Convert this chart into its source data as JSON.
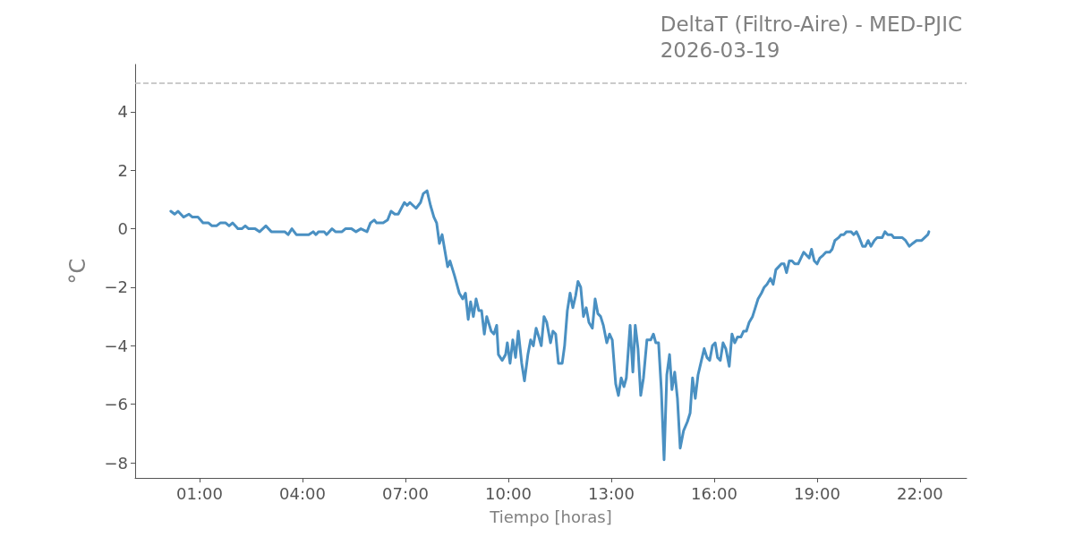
{
  "chart_data": {
    "type": "line",
    "title": "DeltaT (Filtro-Aire) - MED-PJIC",
    "subtitle": "2026-03-19",
    "xlabel": "Tiempo [horas]",
    "ylabel": "°C",
    "x": [
      0.16,
      0.27,
      0.37,
      0.53,
      0.69,
      0.79,
      0.95,
      1.1,
      1.26,
      1.36,
      1.49,
      1.6,
      1.76,
      1.86,
      1.96,
      2.12,
      2.23,
      2.33,
      2.43,
      2.62,
      2.75,
      2.93,
      3.09,
      3.27,
      3.48,
      3.58,
      3.69,
      3.82,
      4.18,
      4.31,
      4.39,
      4.47,
      4.63,
      4.7,
      4.86,
      4.96,
      5.15,
      5.25,
      5.43,
      5.56,
      5.7,
      5.88,
      5.98,
      6.09,
      6.16,
      6.35,
      6.48,
      6.58,
      6.69,
      6.79,
      6.97,
      7.05,
      7.13,
      7.31,
      7.44,
      7.52,
      7.63,
      7.73,
      7.83,
      7.91,
      7.99,
      8.07,
      8.23,
      8.3,
      8.43,
      8.57,
      8.67,
      8.75,
      8.83,
      8.9,
      8.98,
      9.06,
      9.14,
      9.22,
      9.3,
      9.37,
      9.5,
      9.58,
      9.66,
      9.71,
      9.82,
      9.92,
      9.97,
      10.05,
      10.13,
      10.21,
      10.29,
      10.39,
      10.47,
      10.57,
      10.65,
      10.73,
      10.81,
      10.89,
      10.96,
      11.04,
      11.12,
      11.23,
      11.3,
      11.38,
      11.46,
      11.57,
      11.64,
      11.72,
      11.8,
      11.88,
      11.96,
      12.03,
      12.11,
      12.19,
      12.27,
      12.35,
      12.45,
      12.53,
      12.61,
      12.69,
      12.77,
      12.87,
      12.95,
      13.03,
      13.13,
      13.21,
      13.29,
      13.37,
      13.44,
      13.55,
      13.63,
      13.7,
      13.78,
      13.86,
      13.94,
      14.04,
      14.15,
      14.23,
      14.3,
      14.38,
      14.46,
      14.54,
      14.62,
      14.7,
      14.77,
      14.85,
      14.93,
      15.01,
      15.11,
      15.22,
      15.3,
      15.37,
      15.45,
      15.53,
      15.63,
      15.71,
      15.79,
      15.87,
      15.95,
      16.03,
      16.1,
      16.18,
      16.26,
      16.34,
      16.44,
      16.52,
      16.6,
      16.68,
      16.78,
      16.86,
      16.94,
      17.02,
      17.12,
      17.2,
      17.28,
      17.38,
      17.46,
      17.54,
      17.64,
      17.72,
      17.8,
      17.88,
      17.96,
      18.04,
      18.11,
      18.19,
      18.27,
      18.35,
      18.45,
      18.53,
      18.61,
      18.69,
      18.77,
      18.84,
      18.92,
      19.0,
      19.08,
      19.18,
      19.26,
      19.37,
      19.44,
      19.52,
      19.63,
      19.7,
      19.78,
      19.86,
      19.99,
      20.07,
      20.15,
      20.23,
      20.33,
      20.41,
      20.49,
      20.57,
      20.67,
      20.75,
      20.9,
      20.98,
      21.06,
      21.17,
      21.24,
      21.48,
      21.58,
      21.69,
      21.79,
      21.9,
      22.05,
      22.23,
      22.26
    ],
    "series": [
      {
        "color": "#4a90c2",
        "values": [
          0.6,
          0.5,
          0.6,
          0.4,
          0.5,
          0.4,
          0.4,
          0.2,
          0.2,
          0.1,
          0.1,
          0.2,
          0.2,
          0.1,
          0.2,
          0.0,
          0.0,
          0.1,
          0.0,
          0.0,
          -0.1,
          0.1,
          -0.1,
          -0.1,
          -0.1,
          -0.2,
          0.0,
          -0.2,
          -0.2,
          -0.1,
          -0.2,
          -0.1,
          -0.1,
          -0.2,
          0.0,
          -0.1,
          -0.1,
          0.0,
          0.0,
          -0.1,
          0.0,
          -0.1,
          0.2,
          0.3,
          0.2,
          0.2,
          0.3,
          0.6,
          0.5,
          0.5,
          0.9,
          0.8,
          0.9,
          0.7,
          0.9,
          1.2,
          1.3,
          0.8,
          0.4,
          0.2,
          -0.5,
          -0.2,
          -1.3,
          -1.1,
          -1.6,
          -2.2,
          -2.4,
          -2.2,
          -3.1,
          -2.5,
          -3.0,
          -2.4,
          -2.8,
          -2.8,
          -3.6,
          -3.0,
          -3.5,
          -3.6,
          -3.3,
          -4.3,
          -4.5,
          -4.3,
          -3.9,
          -4.6,
          -3.8,
          -4.4,
          -3.5,
          -4.6,
          -5.2,
          -4.3,
          -3.8,
          -4.0,
          -3.4,
          -3.7,
          -4.0,
          -3.0,
          -3.2,
          -3.9,
          -3.5,
          -3.6,
          -4.6,
          -4.6,
          -4.0,
          -2.8,
          -2.2,
          -2.7,
          -2.3,
          -1.8,
          -2.0,
          -3.0,
          -2.7,
          -3.2,
          -3.4,
          -2.4,
          -2.9,
          -3.0,
          -3.3,
          -3.9,
          -3.6,
          -3.8,
          -5.3,
          -5.7,
          -5.1,
          -5.4,
          -5.1,
          -3.3,
          -4.9,
          -3.3,
          -4.1,
          -5.7,
          -5.1,
          -3.8,
          -3.8,
          -3.6,
          -3.9,
          -3.9,
          -5.5,
          -7.9,
          -5.0,
          -4.3,
          -5.5,
          -4.9,
          -5.8,
          -7.5,
          -6.9,
          -6.6,
          -6.3,
          -5.1,
          -5.8,
          -5.0,
          -4.5,
          -4.1,
          -4.4,
          -4.5,
          -4.0,
          -3.9,
          -4.4,
          -4.5,
          -3.9,
          -4.1,
          -4.7,
          -3.6,
          -3.9,
          -3.7,
          -3.7,
          -3.5,
          -3.5,
          -3.2,
          -3.0,
          -2.7,
          -2.4,
          -2.2,
          -2.0,
          -1.9,
          -1.7,
          -1.9,
          -1.4,
          -1.3,
          -1.2,
          -1.2,
          -1.5,
          -1.1,
          -1.1,
          -1.2,
          -1.2,
          -1.0,
          -0.8,
          -0.9,
          -1.0,
          -0.7,
          -1.1,
          -1.2,
          -1.0,
          -0.9,
          -0.8,
          -0.8,
          -0.7,
          -0.4,
          -0.3,
          -0.2,
          -0.2,
          -0.1,
          -0.1,
          -0.2,
          -0.1,
          -0.3,
          -0.6,
          -0.6,
          -0.4,
          -0.6,
          -0.4,
          -0.3,
          -0.3,
          -0.1,
          -0.2,
          -0.2,
          -0.3,
          -0.3,
          -0.4,
          -0.6,
          -0.5,
          -0.4,
          -0.4,
          -0.2,
          -0.1
        ]
      }
    ],
    "xlim": [
      -0.88,
      23.36
    ],
    "xticks": [
      {
        "value": 1,
        "label": "01:00"
      },
      {
        "value": 4,
        "label": "04:00"
      },
      {
        "value": 7,
        "label": "07:00"
      },
      {
        "value": 10,
        "label": "10:00"
      },
      {
        "value": 13,
        "label": "13:00"
      },
      {
        "value": 16,
        "label": "16:00"
      },
      {
        "value": 19,
        "label": "19:00"
      },
      {
        "value": 22,
        "label": "22:00"
      }
    ],
    "ylim": [
      -8.52,
      5.62
    ],
    "yticks": [
      {
        "value": -8,
        "label": "−8"
      },
      {
        "value": -6,
        "label": "−6"
      },
      {
        "value": -4,
        "label": "−4"
      },
      {
        "value": -2,
        "label": "−2"
      },
      0,
      2,
      4
    ],
    "ref_lines": [
      {
        "axis": "y",
        "value": 5,
        "color": "#bbbbbb",
        "line_style": "dashed"
      }
    ],
    "grid": false,
    "marker": "none",
    "line_style": "solid"
  }
}
